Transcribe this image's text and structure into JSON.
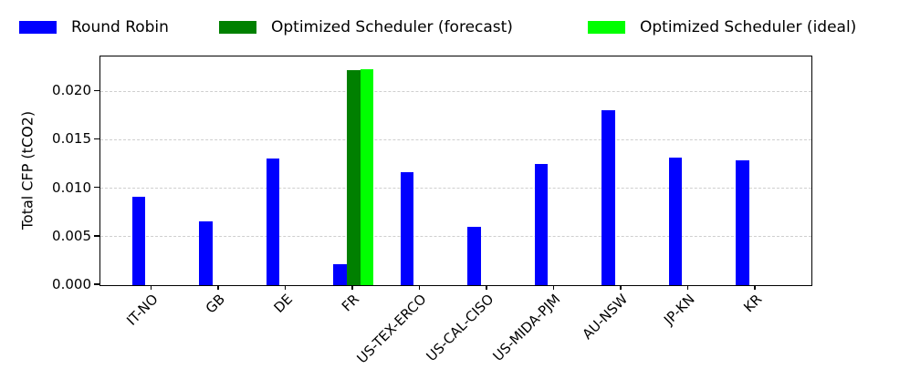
{
  "chart_data": {
    "type": "bar",
    "title": "",
    "xlabel": "",
    "ylabel": "Total CFP (tCO2)",
    "categories": [
      "IT-NO",
      "GB",
      "DE",
      "FR",
      "US-TEX-ERCO",
      "US-CAL-CISO",
      "US-MIDA-PJM",
      "AU-NSW",
      "JP-KN",
      "KR"
    ],
    "series": [
      {
        "name": "Round Robin",
        "color": "#0000ff",
        "values": [
          0.0091,
          0.0066,
          0.0131,
          0.0022,
          0.0117,
          0.006,
          0.0125,
          0.0181,
          0.0132,
          0.0129
        ]
      },
      {
        "name": "Optimized Scheduler (forecast)",
        "color": "#008000",
        "values": [
          0,
          0,
          0,
          0.0222,
          0,
          0,
          0,
          0,
          0,
          0
        ]
      },
      {
        "name": "Optimized Scheduler (ideal)",
        "color": "#00ff00",
        "values": [
          0,
          0,
          0,
          0.0223,
          0,
          0,
          0,
          0,
          0,
          0
        ]
      }
    ],
    "yticks": [
      "0.000",
      "0.005",
      "0.010",
      "0.015",
      "0.020"
    ],
    "ytick_values": [
      0.0,
      0.005,
      0.01,
      0.015,
      0.02
    ],
    "ylim": [
      0,
      0.0236
    ],
    "grid": "horizontal-dashed",
    "legend_position": "top-horizontal"
  }
}
